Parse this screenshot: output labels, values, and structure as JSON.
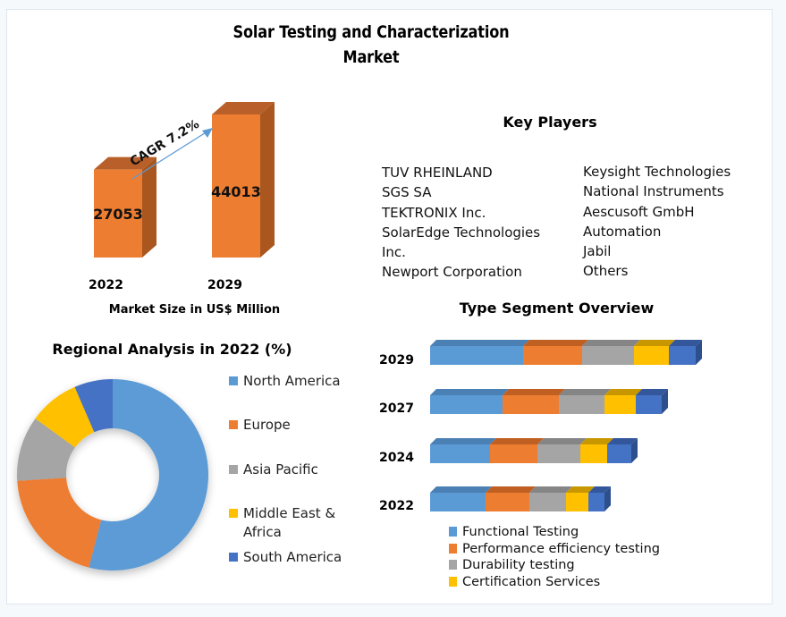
{
  "title_line1": "Solar Testing and Characterization",
  "title_line2": "Market",
  "colors": {
    "bar_orange": "#ed7d31",
    "bar_orange_top": "#b9602a",
    "bar_orange_side": "#a9561f",
    "blue": "#5b9bd5",
    "orange": "#ed7d31",
    "gray": "#a5a5a5",
    "yellow": "#ffc000",
    "darkblue": "#4472c4",
    "arrow": "#5b9bd5"
  },
  "chart_data": [
    {
      "type": "bar",
      "title": "Market Size in US$ Million",
      "categories": [
        "2022",
        "2029"
      ],
      "values": [
        27053,
        44013
      ],
      "value_labels": [
        "27053",
        "44013"
      ],
      "annotation": "CAGR 7.2%",
      "xlabel": "Market Size in US$ Million",
      "ylabel": "",
      "style": "3d-column"
    },
    {
      "type": "pie",
      "title": "Regional Analysis in 2022 (%)",
      "style": "donut",
      "labels": [
        "North America",
        "Europe",
        "Asia Pacific",
        "Middle East & Africa",
        "South America"
      ],
      "legend_labels": [
        "North America",
        "Europe",
        "Asia Pacific",
        "Middle East &\nAfrica",
        "South America"
      ],
      "values": [
        54,
        20,
        11,
        8.5,
        6.5
      ],
      "legend": "right"
    },
    {
      "type": "bar",
      "orientation": "horizontal",
      "stacked": true,
      "title": "Type Segment Overview",
      "categories": [
        "2029",
        "2027",
        "2024",
        "2022"
      ],
      "series": [
        {
          "name": "Functional Testing",
          "values": [
            104,
            81,
            67,
            62
          ]
        },
        {
          "name": "Performance efficiency testing",
          "values": [
            66,
            63,
            53,
            49
          ]
        },
        {
          "name": "Durability testing",
          "values": [
            58,
            51,
            48,
            41
          ]
        },
        {
          "name": "Certification Services",
          "values": [
            39,
            35,
            30,
            25
          ]
        },
        {
          "name": "",
          "values": [
            30,
            29,
            27,
            18
          ]
        }
      ],
      "legend_labels": [
        "Functional Testing",
        "Performance efficiency testing",
        "Durability testing",
        "Certification Services"
      ],
      "legend": "bottom",
      "style": "3d-bar"
    }
  ],
  "key_players": {
    "title": "Key Players",
    "left": [
      "TUV RHEINLAND",
      "SGS SA",
      "TEKTRONIX Inc.",
      "SolarEdge Technologies",
      "Inc.",
      "Newport Corporation"
    ],
    "right": [
      "Keysight Technologies",
      "National Instruments",
      "Aescusoft GmbH",
      "Automation",
      "Jabil",
      "Others"
    ]
  }
}
